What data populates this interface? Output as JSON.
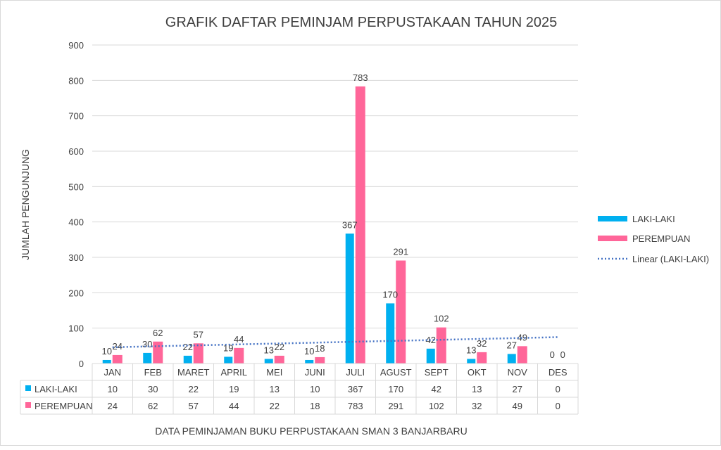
{
  "chart_data": {
    "type": "bar",
    "title": "GRAFIK DAFTAR PEMINJAM PERPUSTAKAAN TAHUN 2025",
    "xlabel": "DATA PEMINJAMAN BUKU PERPUSTAKAAN SMAN 3 BANJARBARU",
    "ylabel": "JUMLAH PENGUNJUNG",
    "ylim": [
      0,
      900
    ],
    "yticks": [
      "0",
      "100",
      "200",
      "300",
      "400",
      "500",
      "600",
      "700",
      "800",
      "900"
    ],
    "grid": true,
    "legend_position": "right",
    "categories": [
      "JAN",
      "FEB",
      "MARET",
      "APRIL",
      "MEI",
      "JUNI",
      "JULI",
      "AGUST",
      "SEPT",
      "OKT",
      "NOV",
      "DES"
    ],
    "series": [
      {
        "name": "LAKI-LAKI",
        "color": "#00B0F0",
        "values": [
          10,
          30,
          22,
          19,
          13,
          10,
          367,
          170,
          42,
          13,
          27,
          0
        ]
      },
      {
        "name": "PEREMPUAN",
        "color": "#FF6699",
        "values": [
          24,
          62,
          57,
          44,
          22,
          18,
          783,
          291,
          102,
          32,
          49,
          0
        ]
      }
    ],
    "trendline": {
      "name": "Linear (LAKI-LAKI)",
      "type": "linear",
      "of_series": "LAKI-LAKI",
      "color": "#4472C4"
    },
    "data_table": true
  }
}
